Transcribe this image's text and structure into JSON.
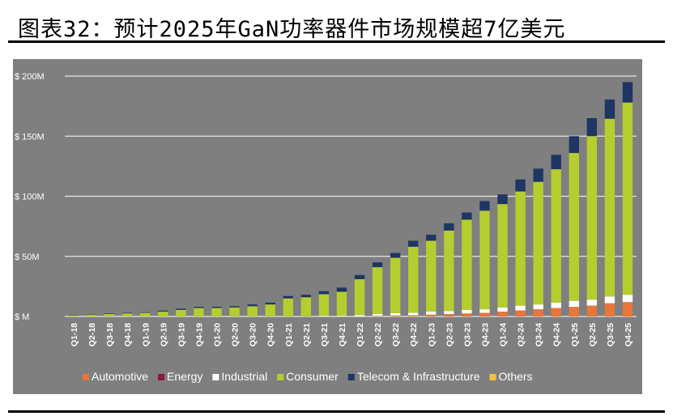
{
  "figure": {
    "title": "图表32：预计2025年GaN功率器件市场规模超7亿美元"
  },
  "chart_data": {
    "type": "bar",
    "stacked": true,
    "title": "",
    "xlabel": "",
    "ylabel": "",
    "ylim": [
      0,
      200
    ],
    "yticks": [
      0,
      50,
      100,
      150,
      200
    ],
    "ytick_labels": [
      "$ M",
      "$ 50M",
      "$ 100M",
      "$ 150M",
      "$ 200M"
    ],
    "grid": true,
    "legend_position": "bottom",
    "categories": [
      "Q1-18",
      "Q2-18",
      "Q3-18",
      "Q4-18",
      "Q1-19",
      "Q2-19",
      "Q3-19",
      "Q4-19",
      "Q1-20",
      "Q2-20",
      "Q3-20",
      "Q4-20",
      "Q1-21",
      "Q2-21",
      "Q3-21",
      "Q4-21",
      "Q1-22",
      "Q2-22",
      "Q3-22",
      "Q4-22",
      "Q1-23",
      "Q2-23",
      "Q3-23",
      "Q4-23",
      "Q1-24",
      "Q2-24",
      "Q3-24",
      "Q4-24",
      "Q1-25",
      "Q2-25",
      "Q3-25",
      "Q4-25"
    ],
    "series": [
      {
        "name": "Automotive",
        "color": "#e8753a",
        "values": [
          0,
          0,
          0,
          0,
          0,
          0,
          0,
          0,
          0,
          0,
          0,
          0,
          0,
          0,
          0,
          0,
          0,
          0.5,
          0.8,
          1,
          1.5,
          2,
          2.5,
          3,
          4,
          5,
          6,
          7,
          8,
          9,
          11,
          12
        ]
      },
      {
        "name": "Energy",
        "color": "#8b1a3a",
        "values": [
          0,
          0,
          0,
          0,
          0,
          0,
          0,
          0,
          0,
          0,
          0,
          0,
          0,
          0,
          0,
          0,
          0,
          0,
          0,
          0,
          0,
          0,
          0,
          0,
          0,
          0,
          0,
          0,
          0,
          0,
          0,
          0
        ]
      },
      {
        "name": "Industrial",
        "color": "#ffffff",
        "values": [
          0,
          0,
          0,
          0,
          0,
          0,
          0,
          0,
          0,
          0,
          0,
          0,
          0,
          0,
          0.5,
          0.5,
          1,
          1.5,
          2,
          2,
          2.5,
          2.5,
          3,
          3,
          3.5,
          4,
          4,
          4.5,
          5,
          5,
          5.5,
          6
        ]
      },
      {
        "name": "Consumer",
        "color": "#b5cd2e",
        "values": [
          1,
          1.5,
          2,
          2.5,
          3,
          4,
          5.5,
          7,
          7,
          7.5,
          8.5,
          10,
          15,
          16,
          18,
          20,
          30,
          39,
          46,
          55,
          59,
          67,
          75,
          82,
          86,
          95,
          102,
          111,
          123,
          136,
          148,
          160
        ]
      },
      {
        "name": "Telecom & Infrastructure",
        "color": "#1f3564",
        "values": [
          0.3,
          0.3,
          0.5,
          0.5,
          0.5,
          0.8,
          1,
          1,
          1,
          1,
          1.5,
          1.5,
          2,
          2,
          2.5,
          3.5,
          3.5,
          4,
          4,
          5,
          5,
          6,
          6,
          8,
          8,
          10,
          11,
          12,
          14,
          15,
          16,
          17
        ]
      },
      {
        "name": "Others",
        "color": "#f2c33d",
        "values": [
          0,
          0,
          0,
          0,
          0,
          0,
          0,
          0,
          0,
          0,
          0,
          0,
          0,
          0,
          0,
          0,
          0,
          0,
          0,
          0,
          0,
          0,
          0,
          0,
          0,
          0,
          0,
          0,
          0,
          0,
          0,
          0
        ]
      }
    ]
  }
}
